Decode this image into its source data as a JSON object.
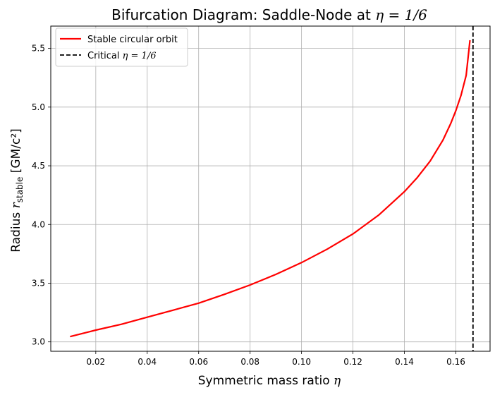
{
  "chart_data": {
    "type": "line",
    "title": {
      "prefix": "Bifurcation Diagram: Saddle-Node at ",
      "math": "η = 1/6"
    },
    "xlabel": {
      "prefix": "Symmetric mass ratio ",
      "math": "η"
    },
    "ylabel": {
      "prefix": "Radius ",
      "var": "r",
      "sub": "stable",
      "unit": " [GM/c²]"
    },
    "xlim": [
      0.0025,
      0.1733
    ],
    "ylim": [
      2.92,
      5.69
    ],
    "xticks": [
      0.02,
      0.04,
      0.06,
      0.08,
      0.1,
      0.12,
      0.14,
      0.16
    ],
    "xtick_labels": [
      "0.02",
      "0.04",
      "0.06",
      "0.08",
      "0.10",
      "0.12",
      "0.14",
      "0.16"
    ],
    "yticks": [
      3.0,
      3.5,
      4.0,
      4.5,
      5.0,
      5.5
    ],
    "ytick_labels": [
      "3.0",
      "3.5",
      "4.0",
      "4.5",
      "5.0",
      "5.5"
    ],
    "grid": true,
    "legend_position": "top-left",
    "series": [
      {
        "name": "Stable circular orbit",
        "color": "#ff0000",
        "style": "solid",
        "x": [
          0.01,
          0.02,
          0.03,
          0.04,
          0.05,
          0.06,
          0.07,
          0.08,
          0.09,
          0.1,
          0.11,
          0.12,
          0.13,
          0.14,
          0.145,
          0.15,
          0.155,
          0.158,
          0.16,
          0.162,
          0.164,
          0.1655
        ],
        "y": [
          3.045,
          3.1,
          3.15,
          3.21,
          3.27,
          3.33,
          3.405,
          3.485,
          3.575,
          3.675,
          3.79,
          3.92,
          4.08,
          4.28,
          4.4,
          4.54,
          4.72,
          4.86,
          4.97,
          5.1,
          5.27,
          5.57
        ]
      },
      {
        "name": "Critical",
        "name_math": "η = 1/6",
        "color": "#000000",
        "style": "dashed",
        "vline_x": 0.16667
      }
    ]
  }
}
